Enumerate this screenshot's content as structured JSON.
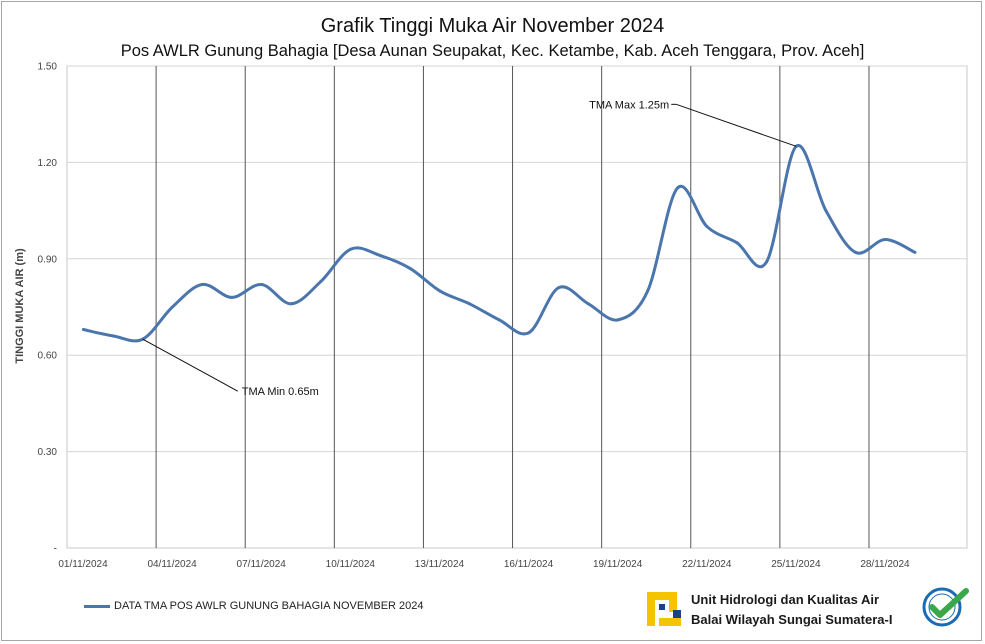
{
  "chart_data": {
    "type": "line",
    "title": "Grafik Tinggi Muka Air November 2024",
    "subtitle": "Pos AWLR Gunung Bahagia [Desa Aunan Seupakat, Kec. Ketambe, Kab. Aceh Tenggara, Prov. Aceh]",
    "ylabel": "TINGGI MUKA AIR (m)",
    "xlabel": "",
    "ylim": [
      0,
      1.5
    ],
    "yticks": [
      "-",
      "0.30",
      "0.60",
      "0.90",
      "1.20",
      "1.50"
    ],
    "xlim": [
      "01/11/2024",
      "30/11/2024"
    ],
    "xticks": [
      "01/11/2024",
      "04/11/2024",
      "07/11/2024",
      "10/11/2024",
      "13/11/2024",
      "16/11/2024",
      "19/11/2024",
      "22/11/2024",
      "25/11/2024",
      "28/11/2024"
    ],
    "grid": true,
    "legend_position": "bottom-left",
    "series": [
      {
        "name": "DATA TMA POS AWLR GUNUNG BAHAGIA NOVEMBER 2024",
        "color": "#4a76ad",
        "x": [
          "01/11/2024",
          "02/11/2024",
          "03/11/2024",
          "04/11/2024",
          "05/11/2024",
          "06/11/2024",
          "07/11/2024",
          "08/11/2024",
          "09/11/2024",
          "10/11/2024",
          "11/11/2024",
          "12/11/2024",
          "13/11/2024",
          "14/11/2024",
          "15/11/2024",
          "16/11/2024",
          "17/11/2024",
          "18/11/2024",
          "19/11/2024",
          "20/11/2024",
          "21/11/2024",
          "22/11/2024",
          "23/11/2024",
          "24/11/2024",
          "25/11/2024",
          "26/11/2024",
          "27/11/2024",
          "28/11/2024",
          "29/11/2024",
          "30/11/2024"
        ],
        "y": [
          0.68,
          0.66,
          0.65,
          0.75,
          0.82,
          0.78,
          0.82,
          0.76,
          0.83,
          0.93,
          0.91,
          0.87,
          0.8,
          0.76,
          0.71,
          0.67,
          0.81,
          0.76,
          0.71,
          0.8,
          1.12,
          1.0,
          0.95,
          0.89,
          1.25,
          1.05,
          0.92,
          0.96,
          0.92,
          null
        ]
      }
    ],
    "annotations": [
      {
        "text": "TMA Min 0.65m",
        "x": "03/11/2024",
        "y": 0.65
      },
      {
        "text": "TMA Max 1.25m",
        "x": "25/11/2024",
        "y": 1.25
      }
    ]
  },
  "footer": {
    "org_line1": "Unit Hidrologi dan Kualitas Air",
    "org_line2": "Balai Wilayah Sungai Sumatera-I",
    "pu_logo_icon": "pu-logo-icon",
    "iso_logo_icon": "iso-certified-icon"
  }
}
